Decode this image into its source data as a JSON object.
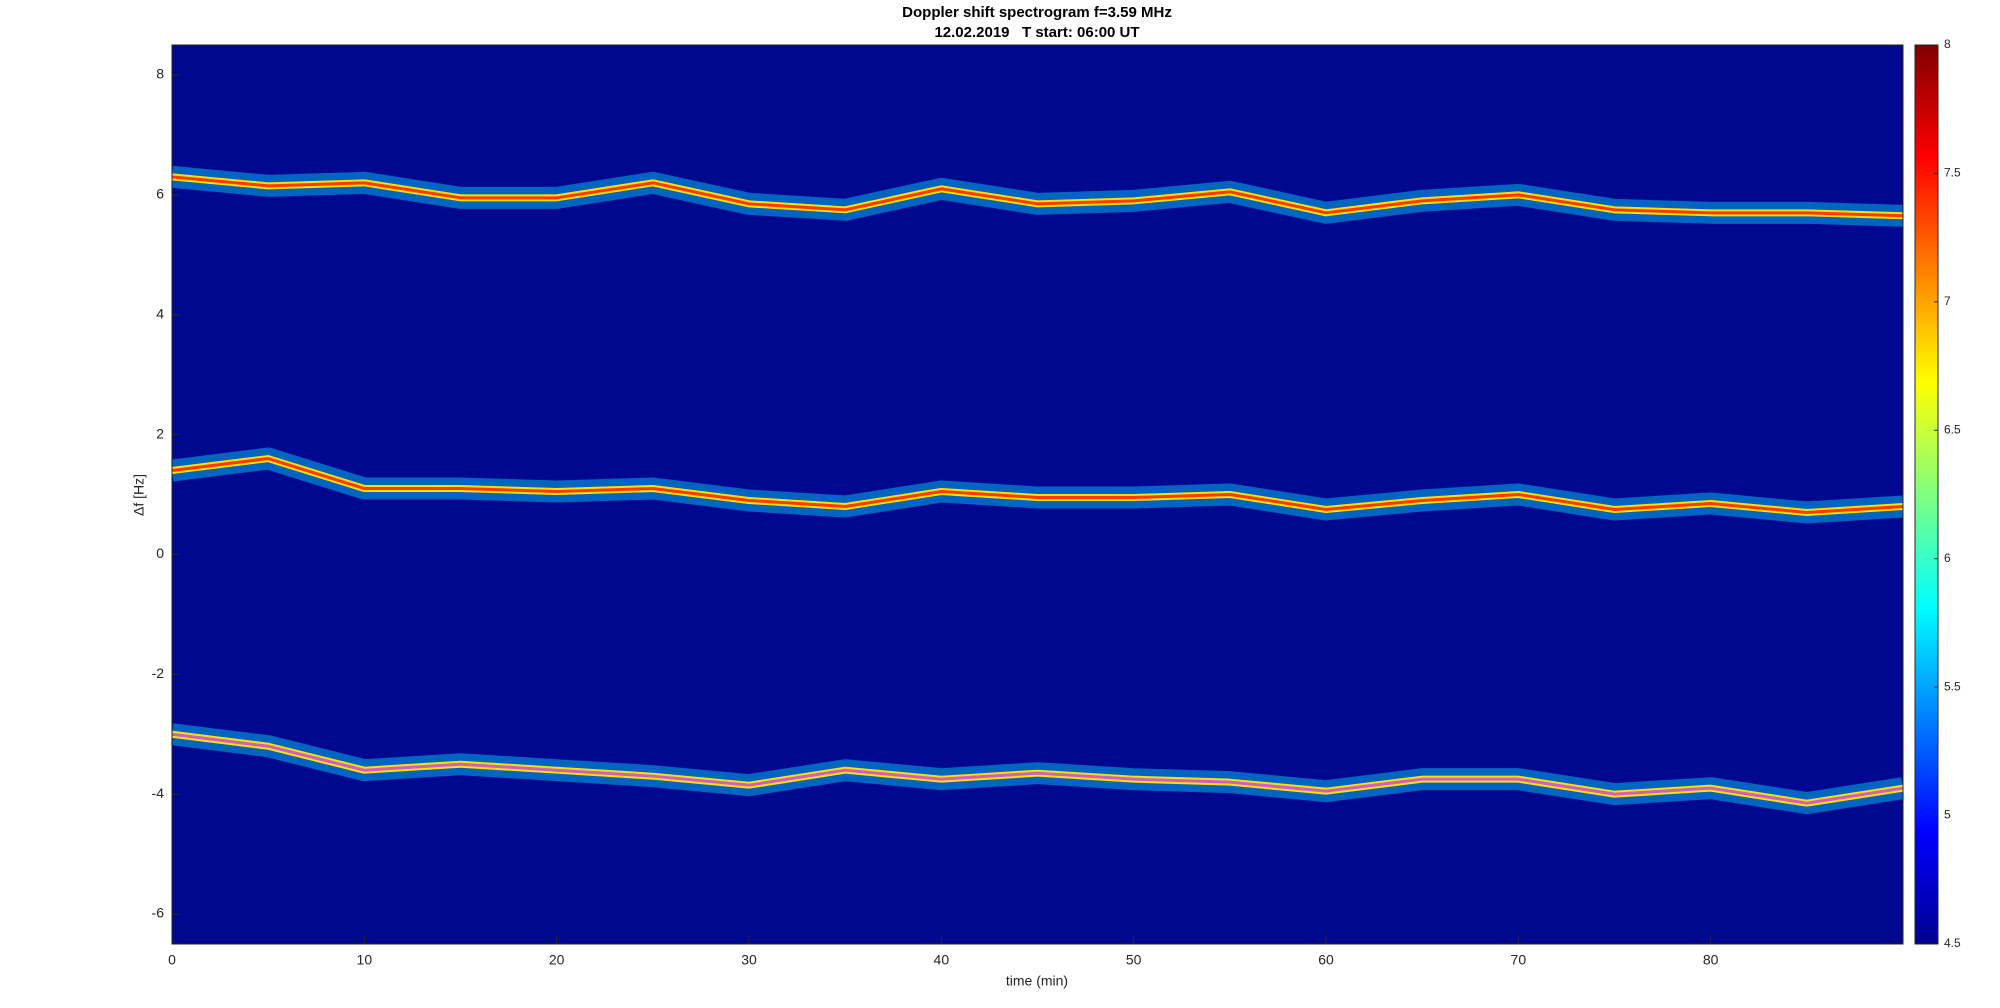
{
  "chart_data": {
    "type": "spectrogram",
    "title": "Doppler shift spectrogram f=3.59 MHz",
    "subtitle": "12.02.2019   T start: 06:00 UT",
    "xlabel": "time (min)",
    "ylabel": "Δf [Hz]",
    "x": [
      0,
      5,
      10,
      15,
      20,
      25,
      30,
      35,
      40,
      45,
      50,
      55,
      60,
      65,
      70,
      75,
      80,
      85,
      90
    ],
    "series": [
      {
        "color": "#ff3a00",
        "values": [
          6.3,
          6.15,
          6.2,
          5.95,
          5.95,
          6.2,
          5.85,
          5.75,
          6.1,
          5.85,
          5.9,
          6.05,
          5.7,
          5.9,
          6.0,
          5.75,
          5.7,
          5.7,
          5.65
        ]
      },
      {
        "color": "#ff3a00",
        "values": [
          1.4,
          1.6,
          1.1,
          1.1,
          1.05,
          1.1,
          0.9,
          0.8,
          1.05,
          0.95,
          0.95,
          1.0,
          0.75,
          0.9,
          1.0,
          0.75,
          0.85,
          0.7,
          0.8
        ]
      },
      {
        "color": "#d060c0",
        "values": [
          -3.0,
          -3.2,
          -3.6,
          -3.5,
          -3.6,
          -3.7,
          -3.85,
          -3.6,
          -3.75,
          -3.65,
          -3.75,
          -3.8,
          -3.95,
          -3.75,
          -3.75,
          -4.0,
          -3.9,
          -4.15,
          -3.9
        ]
      }
    ],
    "background": "#00088f",
    "xlim": [
      0,
      90
    ],
    "xticks": [
      0,
      10,
      20,
      30,
      40,
      50,
      60,
      70,
      80
    ],
    "ylim": [
      -6.5,
      8.5
    ],
    "yticks": [
      -6,
      -4,
      -2,
      0,
      2,
      4,
      6,
      8
    ],
    "colormap": "jet",
    "clim": [
      4.5,
      8
    ],
    "cticks": [
      4.5,
      5,
      5.5,
      6,
      6.5,
      7,
      7.5,
      8
    ]
  }
}
